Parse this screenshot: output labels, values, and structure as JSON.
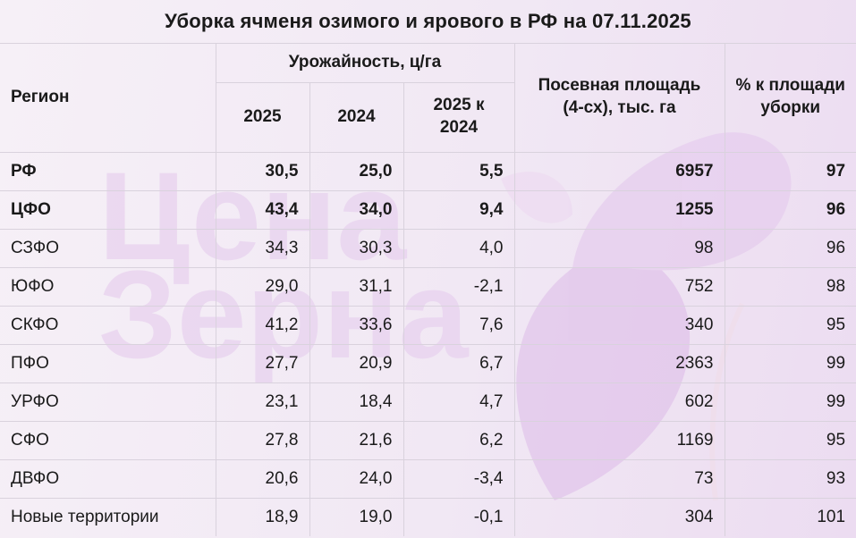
{
  "title": "Уборка ячменя озимого и ярового в РФ на 07.11.2025",
  "watermark": {
    "line1": "Цена",
    "line2": "Зерна"
  },
  "headers": {
    "region": "Регион",
    "yield_group": "Урожайность, ц/га",
    "y2025": "2025",
    "y2024": "2024",
    "diff": "2025 к 2024",
    "area": "Посевная площадь (4-сх), тыс. га",
    "percent": "% к площади уборки"
  },
  "rows": [
    {
      "region": "РФ",
      "y2025": "30,5",
      "y2024": "25,0",
      "diff": "5,5",
      "area": "6957",
      "percent": "97",
      "bold": true
    },
    {
      "region": "ЦФО",
      "y2025": "43,4",
      "y2024": "34,0",
      "diff": "9,4",
      "area": "1255",
      "percent": "96",
      "bold": true
    },
    {
      "region": "СЗФО",
      "y2025": "34,3",
      "y2024": "30,3",
      "diff": "4,0",
      "area": "98",
      "percent": "96",
      "bold": false
    },
    {
      "region": "ЮФО",
      "y2025": "29,0",
      "y2024": "31,1",
      "diff": "-2,1",
      "area": "752",
      "percent": "98",
      "bold": false
    },
    {
      "region": "СКФО",
      "y2025": "41,2",
      "y2024": "33,6",
      "diff": "7,6",
      "area": "340",
      "percent": "95",
      "bold": false
    },
    {
      "region": "ПФО",
      "y2025": "27,7",
      "y2024": "20,9",
      "diff": "6,7",
      "area": "2363",
      "percent": "99",
      "bold": false
    },
    {
      "region": "УРФО",
      "y2025": "23,1",
      "y2024": "18,4",
      "diff": "4,7",
      "area": "602",
      "percent": "99",
      "bold": false
    },
    {
      "region": "СФО",
      "y2025": "27,8",
      "y2024": "21,6",
      "diff": "6,2",
      "area": "1169",
      "percent": "95",
      "bold": false
    },
    {
      "region": "ДВФО",
      "y2025": "20,6",
      "y2024": "24,0",
      "diff": "-3,4",
      "area": "73",
      "percent": "93",
      "bold": false
    },
    {
      "region": "Новые территории",
      "y2025": "18,9",
      "y2024": "19,0",
      "diff": "-0,1",
      "area": "304",
      "percent": "101",
      "bold": false
    }
  ],
  "colors": {
    "watermark_text": "#e6cdee",
    "watermark_shape": "#e2c4ec",
    "grid": "#d9d2dd"
  }
}
